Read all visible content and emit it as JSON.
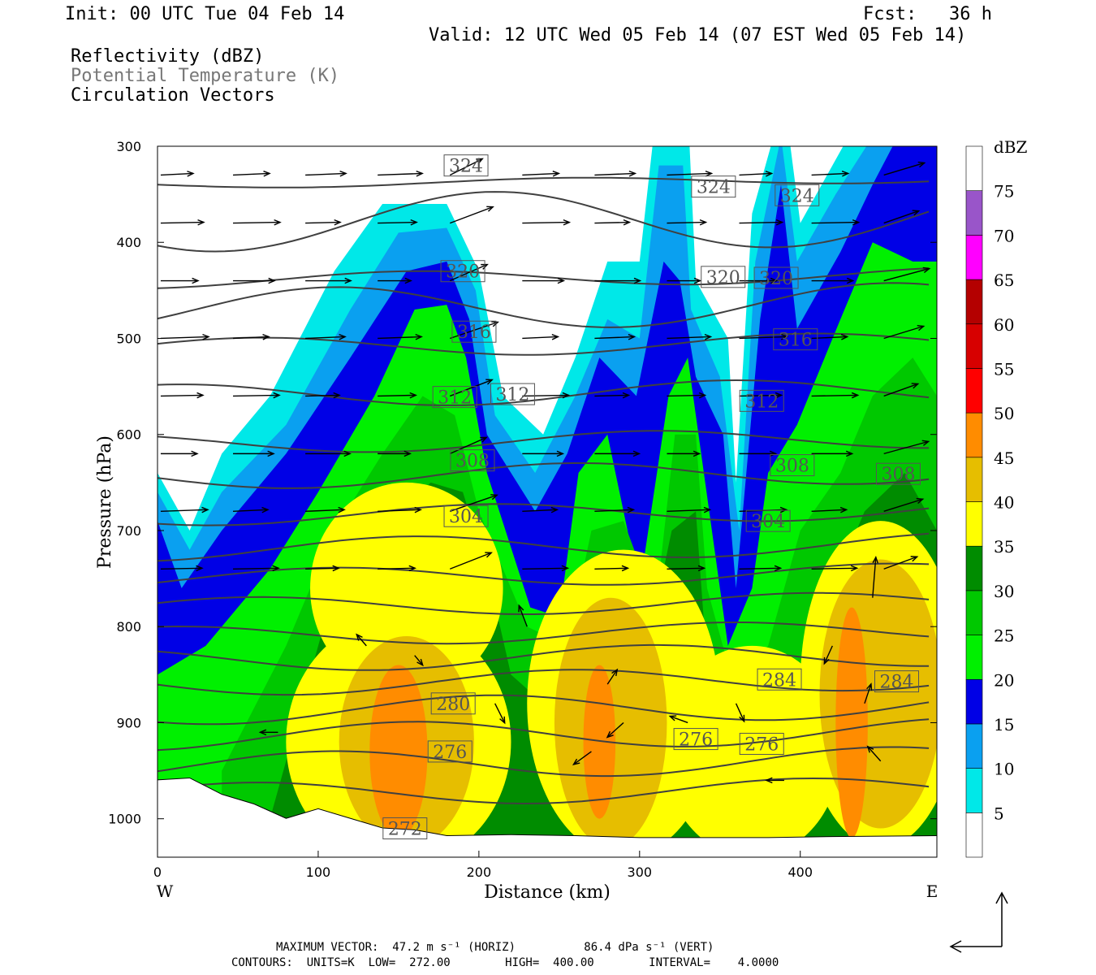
{
  "header": {
    "init": "Init: 00 UTC Tue 04 Feb 14",
    "fcst": "Fcst:   36 h",
    "valid": "Valid: 12 UTC Wed 05 Feb 14 (07 EST Wed 05 Feb 14)",
    "fields": [
      "Reflectivity (dBZ)",
      "Potential Temperature (K)",
      "Circulation Vectors"
    ]
  },
  "footer": {
    "line1": "MAXIMUM VECTOR:  47.2 m s⁻¹ (HORIZ)          86.4 dPa s⁻¹ (VERT)",
    "line2": "CONTOURS:  UNITS=K  LOW=  272.00        HIGH=  400.00        INTERVAL=    4.0000"
  },
  "chart_data": {
    "type": "cross-section",
    "xlabel": "Distance (km)",
    "ylabel": "Pressure (hPa)",
    "xlim": [
      0,
      485
    ],
    "ylim": [
      300,
      1040
    ],
    "x_ticks": [
      0,
      100,
      200,
      300,
      400
    ],
    "y_ticks": [
      300,
      400,
      500,
      600,
      700,
      800,
      900,
      1000
    ],
    "x_end_labels": {
      "left": "W",
      "right": "E"
    },
    "colorbar": {
      "title": "dBZ",
      "levels": [
        5,
        10,
        15,
        20,
        25,
        30,
        35,
        40,
        45,
        50,
        55,
        60,
        65,
        70,
        75
      ],
      "colors": [
        "#ffffff",
        "#00e8e8",
        "#0aa0f0",
        "#0000e6",
        "#00f000",
        "#00c800",
        "#008c00",
        "#ffff00",
        "#e6be00",
        "#ff8c00",
        "#ff0000",
        "#d70000",
        "#b40000",
        "#ff00ff",
        "#9955c9",
        "#ffffff"
      ]
    },
    "theta_contour_labels": [
      {
        "label": "324",
        "x": 192,
        "p": 320
      },
      {
        "label": "324",
        "x": 346,
        "p": 342
      },
      {
        "label": "324",
        "x": 398,
        "p": 351
      },
      {
        "label": "320",
        "x": 190,
        "p": 430
      },
      {
        "label": "320",
        "x": 352,
        "p": 436
      },
      {
        "label": "320",
        "x": 385,
        "p": 437
      },
      {
        "label": "316",
        "x": 197,
        "p": 493
      },
      {
        "label": "316",
        "x": 397,
        "p": 501
      },
      {
        "label": "312",
        "x": 185,
        "p": 561
      },
      {
        "label": "312",
        "x": 221,
        "p": 558
      },
      {
        "label": "312",
        "x": 376,
        "p": 565
      },
      {
        "label": "308",
        "x": 196,
        "p": 627
      },
      {
        "label": "308",
        "x": 395,
        "p": 632
      },
      {
        "label": "308",
        "x": 461,
        "p": 641
      },
      {
        "label": "304",
        "x": 192,
        "p": 685
      },
      {
        "label": "304",
        "x": 380,
        "p": 690
      },
      {
        "label": "284",
        "x": 387,
        "p": 855
      },
      {
        "label": "284",
        "x": 460,
        "p": 857
      },
      {
        "label": "280",
        "x": 184,
        "p": 880
      },
      {
        "label": "276",
        "x": 182,
        "p": 930
      },
      {
        "label": "276",
        "x": 335,
        "p": 917
      },
      {
        "label": "276",
        "x": 376,
        "p": 922
      },
      {
        "label": "272",
        "x": 154,
        "p": 1010
      }
    ],
    "max_vector": {
      "horizontal": 47.2,
      "horizontal_units": "m s-1",
      "vertical": 86.4,
      "vertical_units": "dPa s-1"
    },
    "contours": {
      "units": "K",
      "low": 272.0,
      "high": 400.0,
      "interval": 4.0
    }
  }
}
